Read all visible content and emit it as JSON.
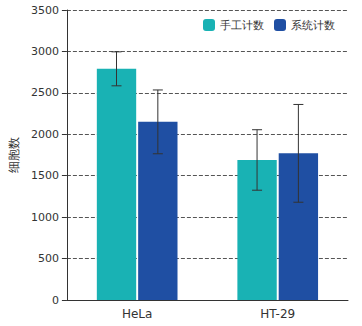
{
  "chart_data": {
    "type": "bar",
    "y_label": "细胞数",
    "categories": [
      "HeLa",
      "HT-29"
    ],
    "series": [
      {
        "name": "手工计数",
        "color": "#19b2b4",
        "values": [
          2790,
          1690
        ],
        "errors": [
          205,
          365
        ]
      },
      {
        "name": "系统计数",
        "color": "#1f4fa3",
        "values": [
          2150,
          1770
        ],
        "errors": [
          385,
          590
        ]
      }
    ],
    "ylim": [
      0,
      3500
    ],
    "yticks": [
      0,
      500,
      1000,
      1500,
      2000,
      2500,
      3000,
      3500
    ],
    "grid": true,
    "legend": "upper right"
  }
}
